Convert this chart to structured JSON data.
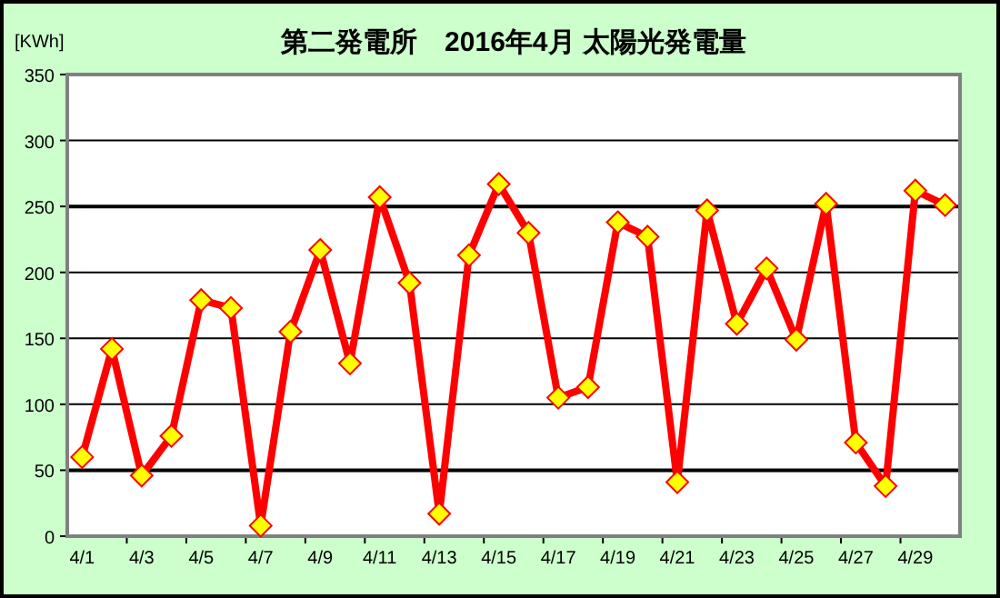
{
  "chart_data": {
    "type": "line",
    "title": "第二発電所　2016年4月 太陽光発電量",
    "ylabel": "[KWh]",
    "categories": [
      "4/1",
      null,
      "4/3",
      null,
      "4/5",
      null,
      "4/7",
      null,
      "4/9",
      null,
      "4/11",
      null,
      "4/13",
      null,
      "4/15",
      null,
      "4/17",
      null,
      "4/19",
      null,
      "4/21",
      null,
      "4/23",
      null,
      "4/25",
      null,
      "4/27",
      null,
      "4/29",
      null
    ],
    "series": [
      {
        "color": "#ff0000",
        "values": [
          60,
          142,
          46,
          76,
          179,
          173,
          8,
          155,
          217,
          131,
          257,
          192,
          17,
          213,
          267,
          230,
          105,
          113,
          238,
          227,
          41,
          247,
          161,
          203,
          149,
          252,
          71,
          38,
          262,
          251
        ]
      }
    ],
    "ylim": [
      0,
      350
    ],
    "yticks": [
      0,
      50,
      100,
      150,
      200,
      250,
      300,
      350
    ],
    "grid": "y",
    "marker": "diamond",
    "line_style": "solid"
  }
}
